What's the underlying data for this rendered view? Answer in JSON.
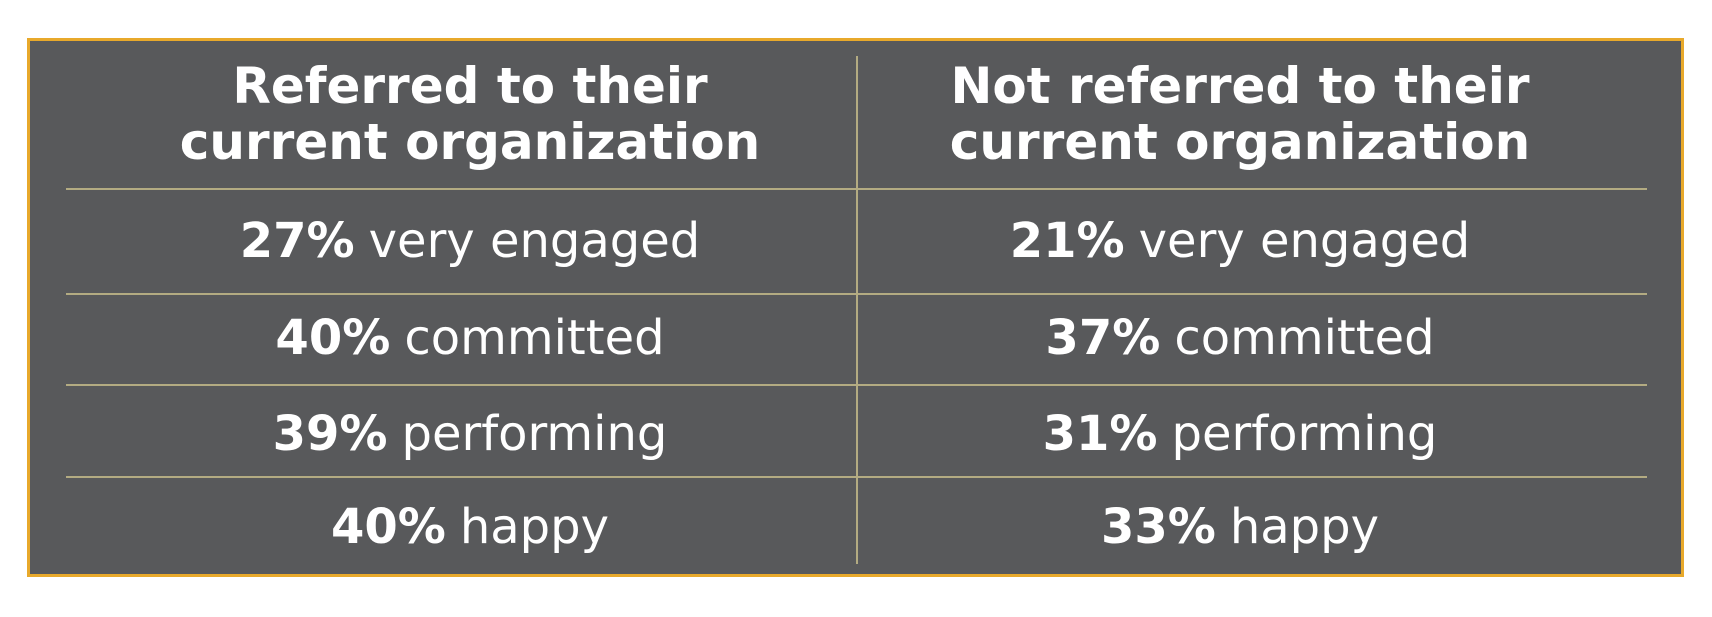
{
  "table": {
    "header": [
      [
        "Referred to their",
        "current organization"
      ],
      [
        "Not referred to their",
        "current organization"
      ]
    ],
    "rows": [
      [
        [
          "27%",
          "very engaged"
        ],
        [
          "21%",
          "very engaged"
        ]
      ],
      [
        [
          "40%",
          "committed"
        ],
        [
          "37%",
          "committed"
        ]
      ],
      [
        [
          "39%",
          "performing"
        ],
        [
          "31%",
          "performing"
        ]
      ],
      [
        [
          "40%",
          "happy"
        ],
        [
          "33%",
          "happy"
        ]
      ]
    ]
  }
}
